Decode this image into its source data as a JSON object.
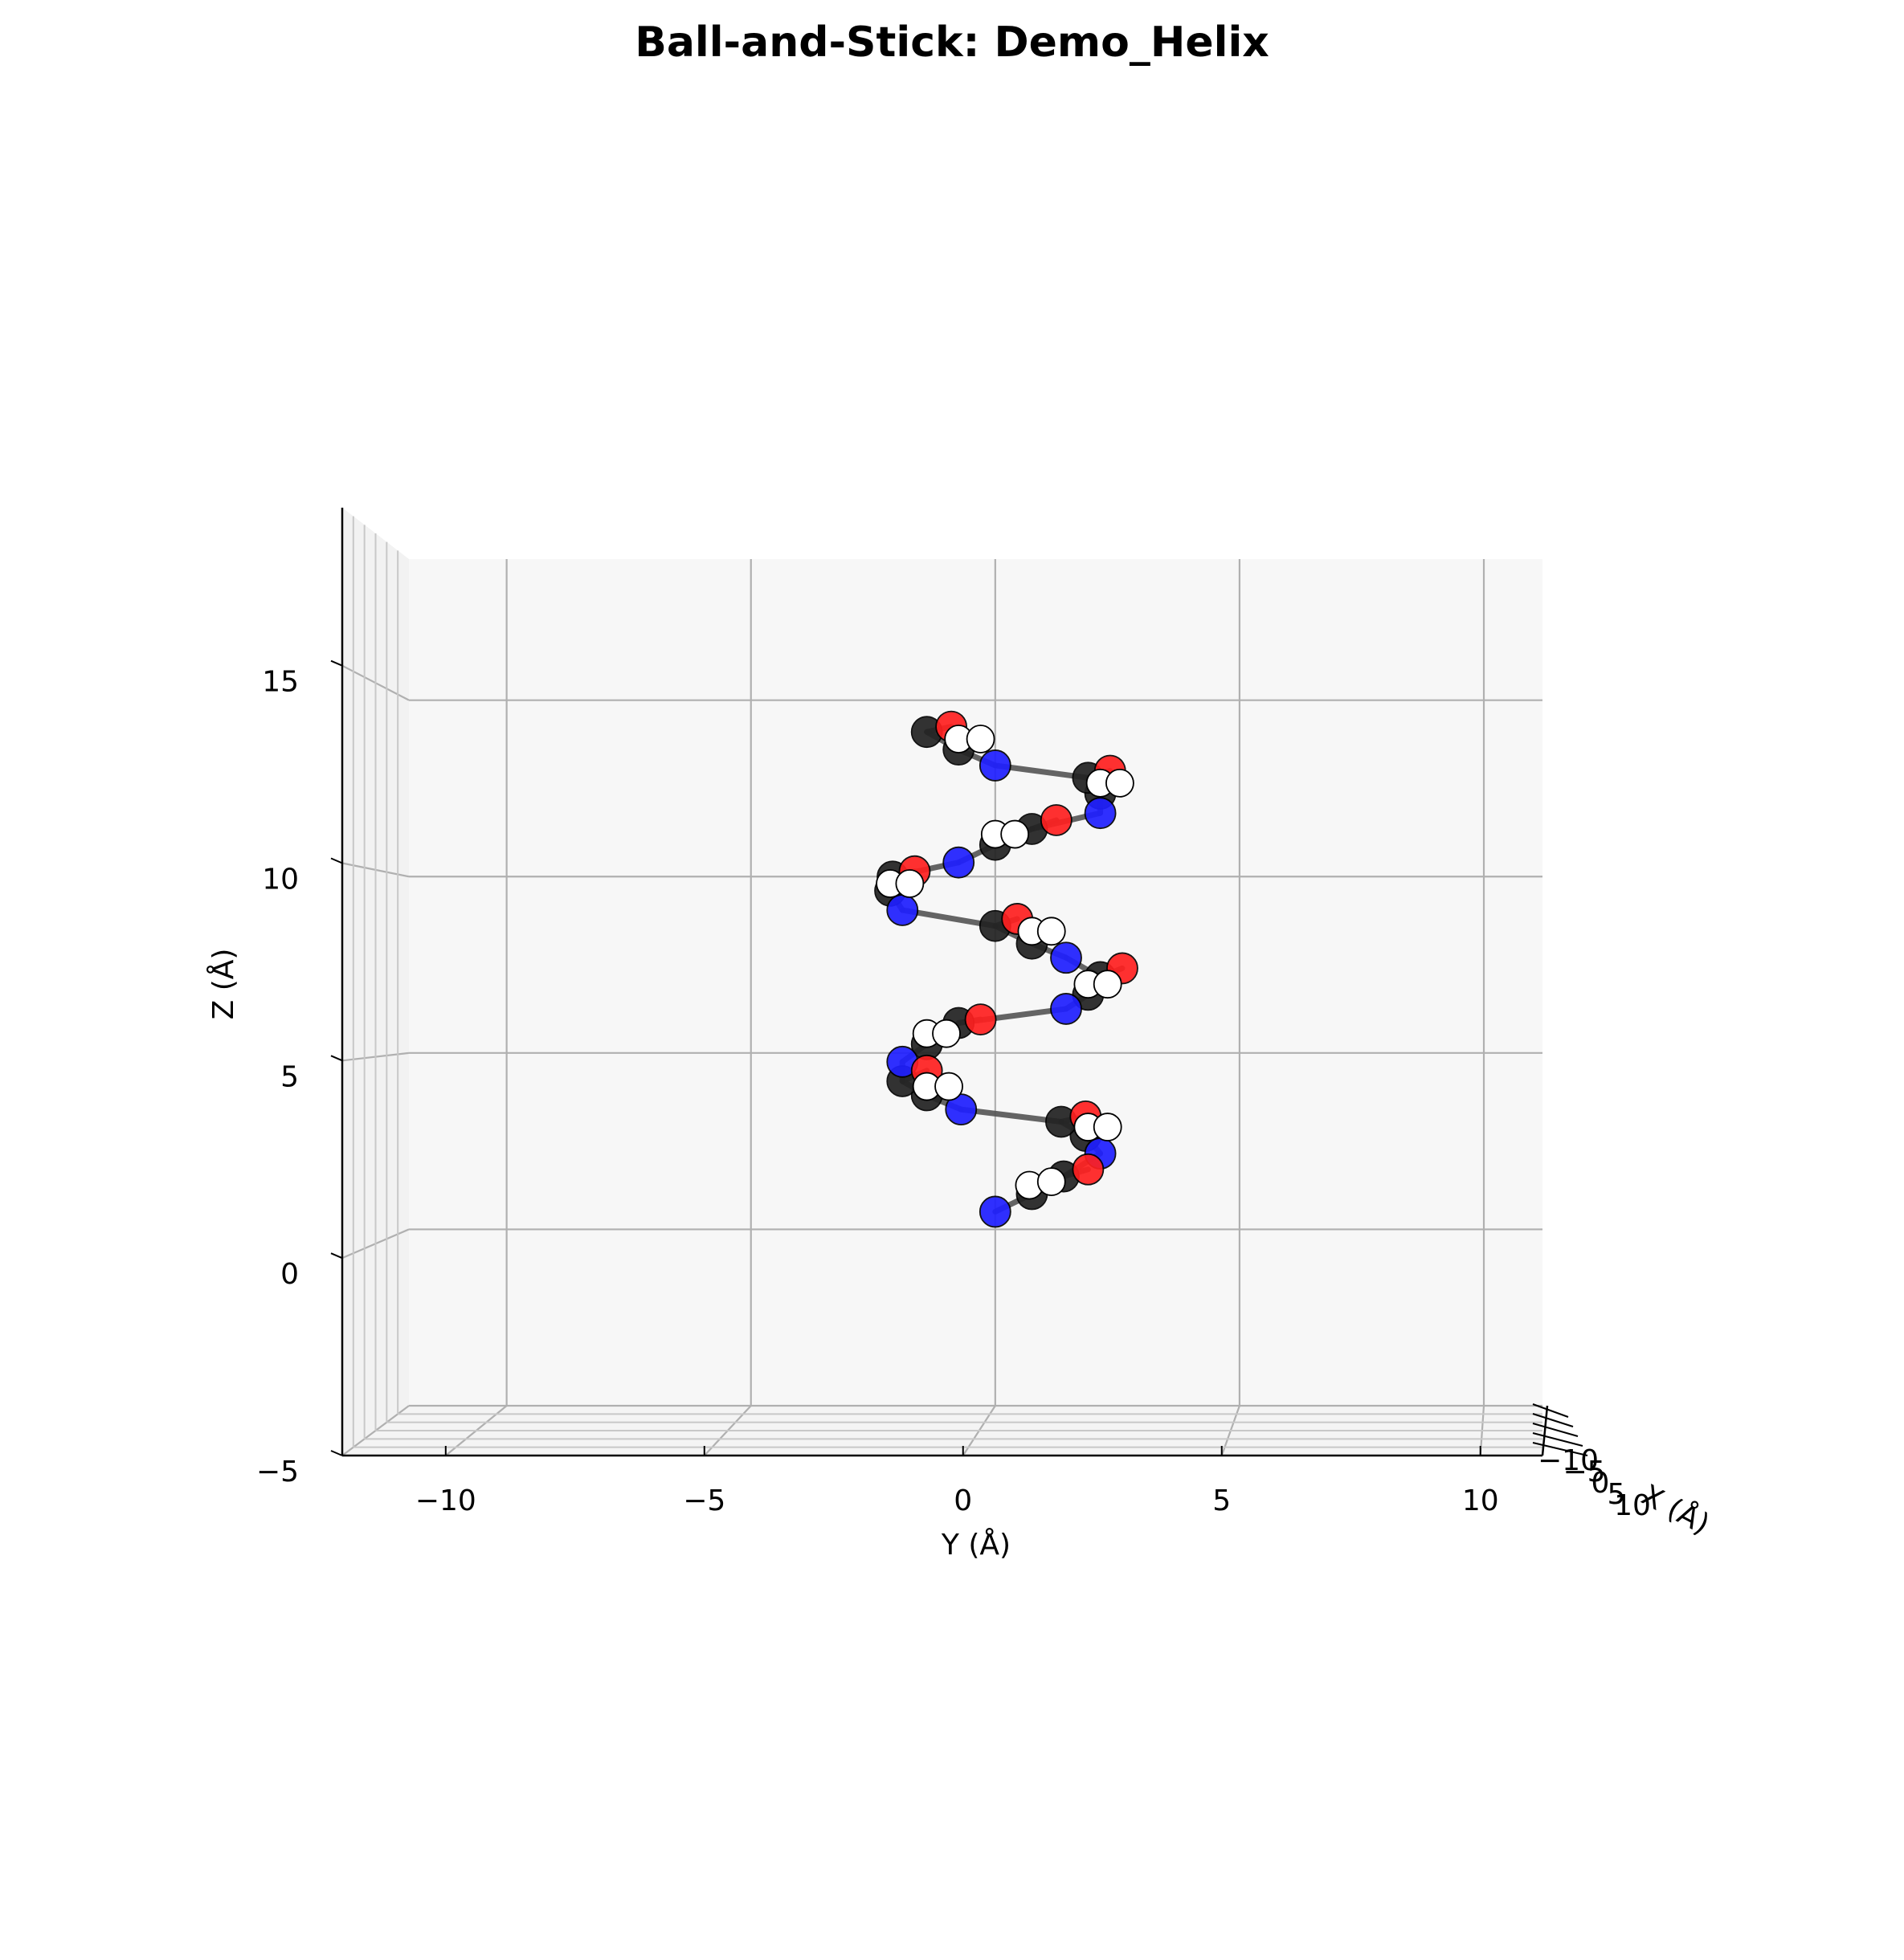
{
  "chart_data": {
    "type": "scatter",
    "title": "Ball-and-Stick: Demo_Helix",
    "xlabel": "Y (Å)",
    "ylabel": "Z (Å)",
    "depth_label": "X (Å)",
    "xlim": [
      -12,
      11.2
    ],
    "ylim": [
      -5,
      19
    ],
    "x_ticks": [
      {
        "value": -10,
        "label": "−10"
      },
      {
        "value": -5,
        "label": "−5"
      },
      {
        "value": 0,
        "label": "0"
      },
      {
        "value": 5,
        "label": "5"
      },
      {
        "value": 10,
        "label": "10"
      }
    ],
    "y_ticks": [
      {
        "value": -5,
        "label": "−5"
      },
      {
        "value": 0,
        "label": "0"
      },
      {
        "value": 5,
        "label": "5"
      },
      {
        "value": 10,
        "label": "10"
      },
      {
        "value": 15,
        "label": "15"
      }
    ],
    "depth_ticks": [
      {
        "value": -10,
        "label": "−10"
      },
      {
        "value": -5,
        "label": "−5"
      },
      {
        "value": 0,
        "label": "0"
      },
      {
        "value": 5,
        "label": "5"
      },
      {
        "value": 10,
        "label": "10"
      }
    ],
    "grid": true,
    "bond_color": "#555555",
    "element_colors": {
      "N": "#1f1fff",
      "C": "#222222",
      "O": "#ff2020",
      "H": "#ffffff"
    },
    "series": [
      {
        "residue": 1,
        "atoms": [
          {
            "element": "N",
            "y": 0.0,
            "z": 0.5
          },
          {
            "element": "C",
            "y": 0.75,
            "z": 1.0
          },
          {
            "element": "C",
            "y": 1.4,
            "z": 1.5
          },
          {
            "element": "O",
            "y": 1.9,
            "z": 1.7
          },
          {
            "element": "H",
            "y": 0.7,
            "z": 1.25
          },
          {
            "element": "H",
            "y": 1.15,
            "z": 1.35
          }
        ]
      },
      {
        "residue": 2,
        "atoms": [
          {
            "element": "N",
            "y": 2.15,
            "z": 2.15
          },
          {
            "element": "C",
            "y": 1.85,
            "z": 2.65
          },
          {
            "element": "C",
            "y": 1.35,
            "z": 3.05
          },
          {
            "element": "O",
            "y": 1.85,
            "z": 3.2
          },
          {
            "element": "H",
            "y": 1.9,
            "z": 2.9
          },
          {
            "element": "H",
            "y": 2.3,
            "z": 2.9
          }
        ]
      },
      {
        "residue": 3,
        "atoms": [
          {
            "element": "N",
            "y": -0.7,
            "z": 3.4
          },
          {
            "element": "C",
            "y": -1.4,
            "z": 3.8
          },
          {
            "element": "C",
            "y": -1.9,
            "z": 4.2
          },
          {
            "element": "O",
            "y": -1.4,
            "z": 4.5
          },
          {
            "element": "H",
            "y": -1.4,
            "z": 4.05
          },
          {
            "element": "H",
            "y": -0.95,
            "z": 4.05
          }
        ]
      },
      {
        "residue": 4,
        "atoms": [
          {
            "element": "N",
            "y": -1.9,
            "z": 4.75
          },
          {
            "element": "C",
            "y": -1.4,
            "z": 5.25
          },
          {
            "element": "C",
            "y": -0.75,
            "z": 5.85
          },
          {
            "element": "O",
            "y": -0.3,
            "z": 5.95
          },
          {
            "element": "H",
            "y": -1.4,
            "z": 5.55
          },
          {
            "element": "H",
            "y": -1.0,
            "z": 5.55
          }
        ]
      },
      {
        "residue": 5,
        "atoms": [
          {
            "element": "N",
            "y": 1.45,
            "z": 6.25
          },
          {
            "element": "C",
            "y": 1.9,
            "z": 6.65
          },
          {
            "element": "C",
            "y": 2.15,
            "z": 7.15
          },
          {
            "element": "O",
            "y": 2.6,
            "z": 7.4
          },
          {
            "element": "H",
            "y": 1.9,
            "z": 6.95
          },
          {
            "element": "H",
            "y": 2.3,
            "z": 6.95
          }
        ]
      },
      {
        "residue": 6,
        "atoms": [
          {
            "element": "N",
            "y": 1.45,
            "z": 7.7
          },
          {
            "element": "C",
            "y": 0.75,
            "z": 8.1
          },
          {
            "element": "C",
            "y": 0.0,
            "z": 8.6
          },
          {
            "element": "O",
            "y": 0.45,
            "z": 8.8
          },
          {
            "element": "H",
            "y": 0.75,
            "z": 8.45
          },
          {
            "element": "H",
            "y": 1.15,
            "z": 8.45
          }
        ]
      },
      {
        "residue": 7,
        "atoms": [
          {
            "element": "N",
            "y": -1.9,
            "z": 9.05
          },
          {
            "element": "C",
            "y": -2.15,
            "z": 9.6
          },
          {
            "element": "C",
            "y": -2.1,
            "z": 10.0
          },
          {
            "element": "O",
            "y": -1.65,
            "z": 10.15
          },
          {
            "element": "H",
            "y": -2.15,
            "z": 9.8
          },
          {
            "element": "H",
            "y": -1.75,
            "z": 9.8
          }
        ]
      },
      {
        "residue": 8,
        "atoms": [
          {
            "element": "N",
            "y": -0.75,
            "z": 10.4
          },
          {
            "element": "C",
            "y": 0.0,
            "z": 10.9
          },
          {
            "element": "C",
            "y": 0.75,
            "z": 11.35
          },
          {
            "element": "O",
            "y": 1.25,
            "z": 11.6
          },
          {
            "element": "H",
            "y": 0.0,
            "z": 11.2
          },
          {
            "element": "H",
            "y": 0.4,
            "z": 11.2
          }
        ]
      },
      {
        "residue": 9,
        "atoms": [
          {
            "element": "N",
            "y": 2.15,
            "z": 11.8
          },
          {
            "element": "C",
            "y": 2.15,
            "z": 12.35
          },
          {
            "element": "C",
            "y": 1.9,
            "z": 12.8
          },
          {
            "element": "O",
            "y": 2.35,
            "z": 13.0
          },
          {
            "element": "H",
            "y": 2.15,
            "z": 12.65
          },
          {
            "element": "H",
            "y": 2.55,
            "z": 12.65
          }
        ]
      },
      {
        "residue": 10,
        "atoms": [
          {
            "element": "N",
            "y": 0.0,
            "z": 13.15
          },
          {
            "element": "C",
            "y": -0.75,
            "z": 13.6
          },
          {
            "element": "C",
            "y": -1.4,
            "z": 14.1
          },
          {
            "element": "O",
            "y": -0.9,
            "z": 14.25
          },
          {
            "element": "H",
            "y": -0.75,
            "z": 13.9
          },
          {
            "element": "H",
            "y": -0.3,
            "z": 13.9
          }
        ]
      }
    ]
  }
}
